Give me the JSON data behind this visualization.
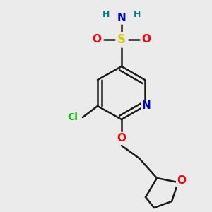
{
  "background_color": "#ebebeb",
  "bond_color": "#1a1a1a",
  "atom_colors": {
    "N": "#0000cc",
    "O": "#ff0000",
    "S": "#cccc00",
    "Cl": "#00bb00",
    "H": "#008080",
    "C": "#1a1a1a"
  },
  "figsize": [
    3.0,
    3.0
  ],
  "dpi": 100
}
